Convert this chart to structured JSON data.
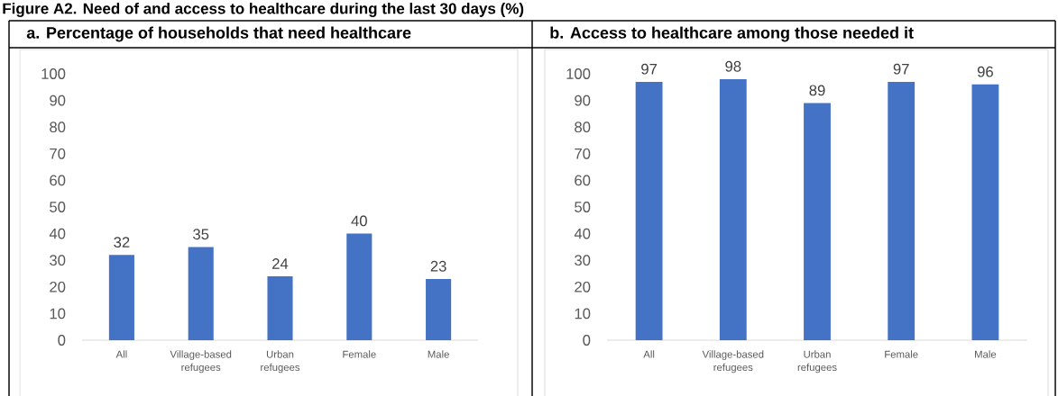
{
  "chart_data": [
    {
      "type": "bar",
      "title": "a. Percentage of households that need healthcare",
      "annotations": [
        "Figure A2. Need of and access to healthcare during the last 30 days (%)"
      ],
      "categories": [
        "All",
        "Village-based refugees",
        "Urban refugees",
        "Female",
        "Male"
      ],
      "values": [
        32,
        35,
        24,
        40,
        23
      ],
      "color": "#4472c4",
      "ylim": [
        0,
        100
      ],
      "yticks": [
        0,
        10,
        20,
        30,
        40,
        50,
        60,
        70,
        80,
        90,
        100
      ],
      "data_labels": true
    },
    {
      "type": "bar",
      "title": "b. Access to healthcare among those needed it",
      "categories": [
        "All",
        "Village-based refugees",
        "Urban refugees",
        "Female",
        "Male"
      ],
      "values": [
        97,
        98,
        89,
        97,
        96
      ],
      "color": "#4472c4",
      "ylim": [
        0,
        100
      ],
      "yticks": [
        0,
        10,
        20,
        30,
        40,
        50,
        60,
        70,
        80,
        90,
        100
      ],
      "data_labels": true
    }
  ]
}
